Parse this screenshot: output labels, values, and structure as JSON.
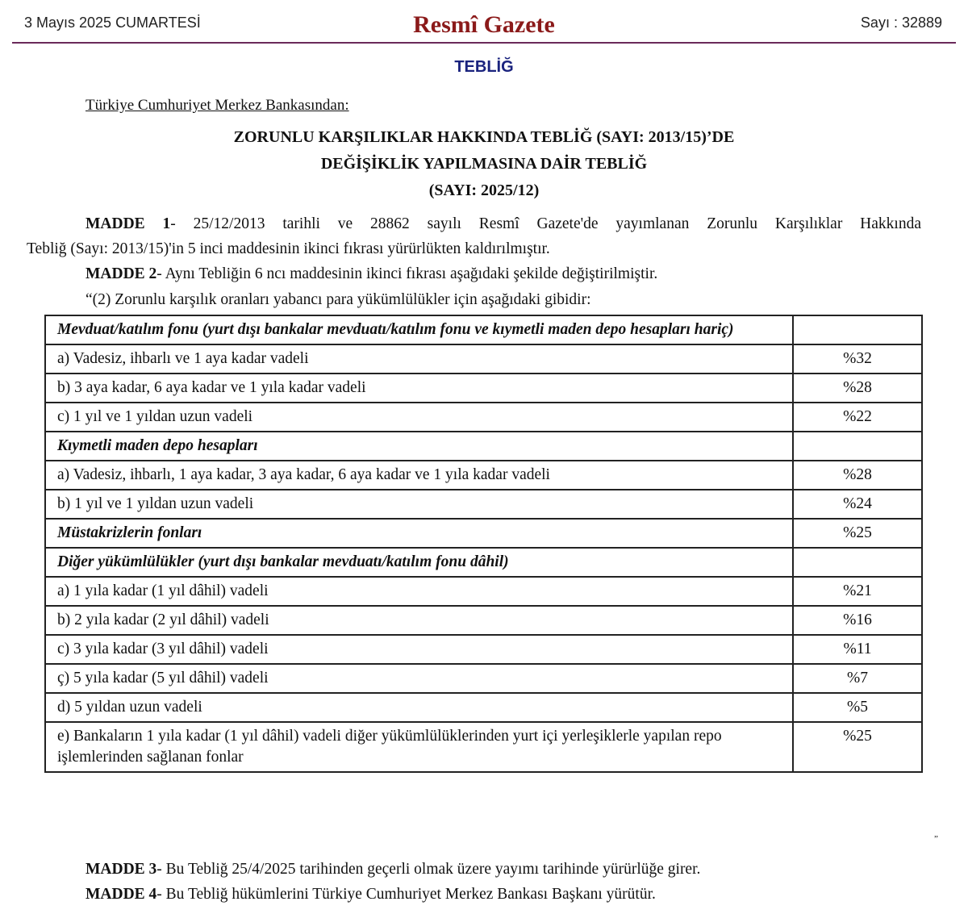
{
  "header": {
    "date": "3 Mayıs 2025 CUMARTESİ",
    "title": "Resmî Gazete",
    "issue": "Sayı : 32889"
  },
  "section": "TEBLİĞ",
  "issuer": "Türkiye Cumhuriyet Merkez Bankasından:",
  "title_lines": [
    "ZORUNLU KARŞILIKLAR HAKKINDA TEBLİĞ (SAYI: 2013/15)’DE",
    "DEĞİŞİKLİK YAPILMASINA DAİR TEBLİĞ",
    "(SAYI: 2025/12)"
  ],
  "articles": [
    {
      "label": "MADDE 1",
      "text": "- 25/12/2013 tarihli ve 28862 sayılı Resmî Gazete'de yayımlanan Zorunlu Karşılıklar Hakkında",
      "cont": "Tebliğ (Sayı: 2013/15)'in 5 inci maddesinin ikinci fıkrası yürürlükten kaldırılmıştır."
    },
    {
      "label": "MADDE 2",
      "text": "- Aynı Tebliğin 6 ncı maddesinin ikinci fıkrası aşağıdaki şekilde değiştirilmiştir."
    },
    {
      "label": "MADDE 3",
      "text": "- Bu Tebliğ 25/4/2025 tarihinden geçerli olmak üzere yayımı tarihinde yürürlüğe girer."
    },
    {
      "label": "MADDE 4",
      "text": "- Bu Tebliğ hükümlerini Türkiye Cumhuriyet Merkez Bankası Başkanı yürütür."
    }
  ],
  "intro": "“(2) Zorunlu karşılık oranları yabancı para yükümlülükler için aşağıdaki gibidir:",
  "close_quote": "”",
  "table": [
    {
      "h": true,
      "label": "Mevduat/katılım fonu (yurt dışı bankalar mevduatı/katılım fonu ve kıymetli maden depo hesapları hariç)",
      "value": ""
    },
    {
      "label": "a) Vadesiz, ihbarlı ve 1 aya kadar vadeli",
      "value": "%32"
    },
    {
      "label": "b) 3 aya kadar, 6 aya kadar ve 1 yıla kadar vadeli",
      "value": "%28"
    },
    {
      "label": "c) 1 yıl ve 1 yıldan uzun vadeli",
      "value": "%22"
    },
    {
      "h": true,
      "label": "Kıymetli maden depo hesapları",
      "value": ""
    },
    {
      "label": "a) Vadesiz, ihbarlı, 1 aya kadar, 3 aya kadar, 6 aya kadar ve 1 yıla kadar vadeli",
      "value": "%28"
    },
    {
      "label": "b) 1 yıl ve 1 yıldan uzun vadeli",
      "value": "%24"
    },
    {
      "h": true,
      "label": "Müstakrizlerin fonları",
      "value": "%25"
    },
    {
      "h": true,
      "label": "Diğer yükümlülükler (yurt dışı bankalar mevduatı/katılım fonu dâhil)",
      "value": ""
    },
    {
      "label": "a) 1 yıla kadar (1 yıl dâhil) vadeli",
      "value": "%21"
    },
    {
      "label": "b) 2 yıla kadar (2 yıl dâhil) vadeli",
      "value": "%16"
    },
    {
      "label": "c) 3 yıla kadar (3 yıl dâhil) vadeli",
      "value": "%11"
    },
    {
      "label": "ç) 5 yıla kadar (5 yıl dâhil) vadeli",
      "value": "%7"
    },
    {
      "label": "d) 5 yıldan uzun vadeli",
      "value": "%5"
    },
    {
      "label": "e) Bankaların 1 yıla kadar (1 yıl dâhil) vadeli diğer yükümlülüklerinden yurt içi yerleşiklerle yapılan repo işlemlerinden sağlanan fonlar",
      "value": "%25"
    }
  ]
}
